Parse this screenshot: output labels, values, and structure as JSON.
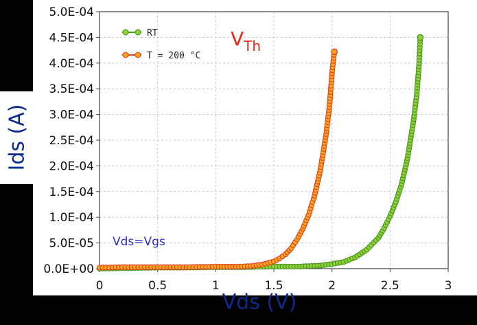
{
  "chart_data": {
    "type": "scatter",
    "title": "",
    "xlabel": "Vds (V)",
    "ylabel": "Ids (A)",
    "xlim": [
      0,
      3
    ],
    "ylim": [
      0,
      0.0005
    ],
    "grid": true,
    "legend_position": "top-left",
    "x_ticks": [
      {
        "value": 0,
        "label": "0"
      },
      {
        "value": 0.5,
        "label": "0.5"
      },
      {
        "value": 1,
        "label": "1"
      },
      {
        "value": 1.5,
        "label": "1.5"
      },
      {
        "value": 2,
        "label": "2"
      },
      {
        "value": 2.5,
        "label": "2.5"
      },
      {
        "value": 3,
        "label": "3"
      }
    ],
    "y_ticks": [
      {
        "value": 0,
        "label": "0.0E+00"
      },
      {
        "value": 5e-05,
        "label": "5.0E-05"
      },
      {
        "value": 0.0001,
        "label": "1.0E-04"
      },
      {
        "value": 0.00015,
        "label": "1.5E-04"
      },
      {
        "value": 0.0002,
        "label": "2.0E-04"
      },
      {
        "value": 0.00025,
        "label": "2.5E-04"
      },
      {
        "value": 0.0003,
        "label": "3.0E-04"
      },
      {
        "value": 0.00035,
        "label": "3.5E-04"
      },
      {
        "value": 0.0004,
        "label": "4.0E-04"
      },
      {
        "value": 0.00045,
        "label": "4.5E-04"
      },
      {
        "value": 0.0005,
        "label": "5.0E-04"
      }
    ],
    "series": [
      {
        "name": "RT",
        "line_color": "#4aa31e",
        "marker_fill": "#8fcf3a",
        "marker_stroke": "#3f8f18",
        "points": [
          [
            0.0,
            0.0
          ],
          [
            0.25,
            1e-06
          ],
          [
            0.5,
            2e-06
          ],
          [
            0.75,
            2e-06
          ],
          [
            1.0,
            3e-06
          ],
          [
            1.25,
            3e-06
          ],
          [
            1.5,
            4e-06
          ],
          [
            1.7,
            4e-06
          ],
          [
            1.9,
            6e-06
          ],
          [
            2.0,
            9e-06
          ],
          [
            2.1,
            1.3e-05
          ],
          [
            2.2,
            2.2e-05
          ],
          [
            2.3,
            3.7e-05
          ],
          [
            2.4,
            6e-05
          ],
          [
            2.45,
            7.9e-05
          ],
          [
            2.5,
            0.000102
          ],
          [
            2.55,
            0.00013
          ],
          [
            2.6,
            0.000165
          ],
          [
            2.65,
            0.000215
          ],
          [
            2.7,
            0.000285
          ],
          [
            2.73,
            0.00034
          ],
          [
            2.75,
            0.0004
          ],
          [
            2.76,
            0.00045
          ]
        ]
      },
      {
        "name": "T = 200 °C",
        "line_color": "#e8401a",
        "marker_fill": "#f7a623",
        "marker_stroke": "#e2361a",
        "points": [
          [
            0.0,
            2e-06
          ],
          [
            0.25,
            3e-06
          ],
          [
            0.5,
            3e-06
          ],
          [
            0.75,
            3e-06
          ],
          [
            1.0,
            4e-06
          ],
          [
            1.2,
            4e-06
          ],
          [
            1.3,
            5e-06
          ],
          [
            1.4,
            8e-06
          ],
          [
            1.5,
            1.4e-05
          ],
          [
            1.55,
            2e-05
          ],
          [
            1.6,
            2.8e-05
          ],
          [
            1.65,
            4e-05
          ],
          [
            1.7,
            5.7e-05
          ],
          [
            1.75,
            7.8e-05
          ],
          [
            1.8,
            0.000105
          ],
          [
            1.85,
            0.000142
          ],
          [
            1.9,
            0.000192
          ],
          [
            1.95,
            0.000262
          ],
          [
            1.98,
            0.00032
          ],
          [
            2.0,
            0.00038
          ],
          [
            2.02,
            0.000422
          ]
        ]
      }
    ],
    "annotations": [
      {
        "text": "V",
        "subscript": "Th"
      },
      {
        "text": "Vds=Vgs"
      }
    ]
  }
}
